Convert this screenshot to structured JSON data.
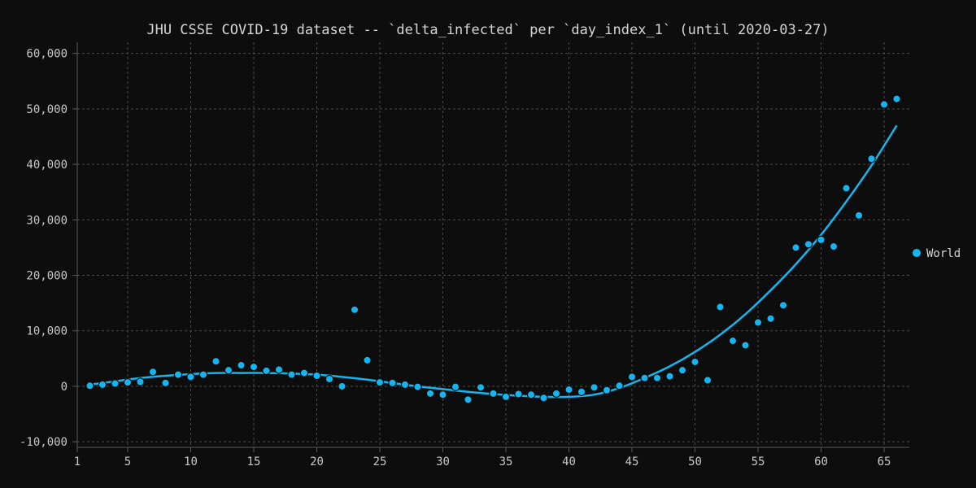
{
  "chart_data": {
    "type": "scatter",
    "title": "JHU CSSE COVID-19 dataset -- `delta_infected` per `day_index_1` (until 2020-03-27)",
    "xlabel": "",
    "ylabel": "",
    "xlim": [
      1,
      67
    ],
    "ylim": [
      -11000,
      62000
    ],
    "x_ticks": [
      1,
      5,
      10,
      15,
      20,
      25,
      30,
      35,
      40,
      45,
      50,
      55,
      60,
      65
    ],
    "y_ticks": [
      -10000,
      0,
      10000,
      20000,
      30000,
      40000,
      50000,
      60000
    ],
    "x_tick_labels": [
      "1",
      "5",
      "10",
      "15",
      "20",
      "25",
      "30",
      "35",
      "40",
      "45",
      "50",
      "55",
      "60",
      "65"
    ],
    "y_tick_labels": [
      "-10,000",
      "0",
      "10,000",
      "20,000",
      "30,000",
      "40,000",
      "50,000",
      "60,000"
    ],
    "grid": true,
    "legend_position": "right",
    "series": [
      {
        "name": "World",
        "color": "#15b5f0",
        "x": [
          2,
          3,
          4,
          5,
          6,
          7,
          8,
          9,
          10,
          11,
          12,
          13,
          14,
          15,
          16,
          17,
          18,
          19,
          20,
          21,
          22,
          23,
          24,
          25,
          26,
          27,
          28,
          29,
          30,
          31,
          32,
          33,
          34,
          35,
          36,
          37,
          38,
          39,
          40,
          41,
          42,
          43,
          44,
          45,
          46,
          47,
          48,
          49,
          50,
          51,
          52,
          53,
          54,
          55,
          56,
          57,
          58,
          59,
          60,
          61,
          62,
          63,
          64,
          65,
          66
        ],
        "values": [
          100,
          300,
          500,
          700,
          800,
          2600,
          600,
          2100,
          1700,
          2100,
          4500,
          2900,
          3800,
          3500,
          2800,
          3000,
          2100,
          2400,
          1900,
          1300,
          0,
          13800,
          4700,
          700,
          600,
          300,
          -100,
          -1300,
          -1500,
          -100,
          -2400,
          -200,
          -1300,
          -1900,
          -1400,
          -1500,
          -2100,
          -1300,
          -600,
          -1000,
          -200,
          -700,
          100,
          1700,
          1500,
          1500,
          1800,
          2900,
          4400,
          1100,
          14300,
          8200,
          7400,
          11500,
          12200,
          14600,
          25000,
          25600,
          26400,
          25200,
          35700,
          30800,
          41000,
          50800,
          51800
        ]
      }
    ],
    "trend_line": {
      "type": "polynomial-fit",
      "color": "#15b5f0",
      "x": [
        2,
        4,
        6,
        8,
        10,
        12,
        14,
        16,
        18,
        20,
        22,
        24,
        26,
        28,
        30,
        32,
        34,
        36,
        38,
        40,
        42,
        44,
        46,
        48,
        50,
        52,
        54,
        56,
        58,
        60,
        62,
        64,
        66
      ],
      "values": [
        300,
        900,
        1500,
        1900,
        2200,
        2400,
        2400,
        2400,
        2300,
        2100,
        1700,
        1200,
        600,
        0,
        -500,
        -1000,
        -1400,
        -1700,
        -1900,
        -1900,
        -1500,
        -300,
        1500,
        3600,
        6200,
        9300,
        13000,
        17300,
        22000,
        27300,
        33300,
        39800,
        47000
      ]
    }
  }
}
